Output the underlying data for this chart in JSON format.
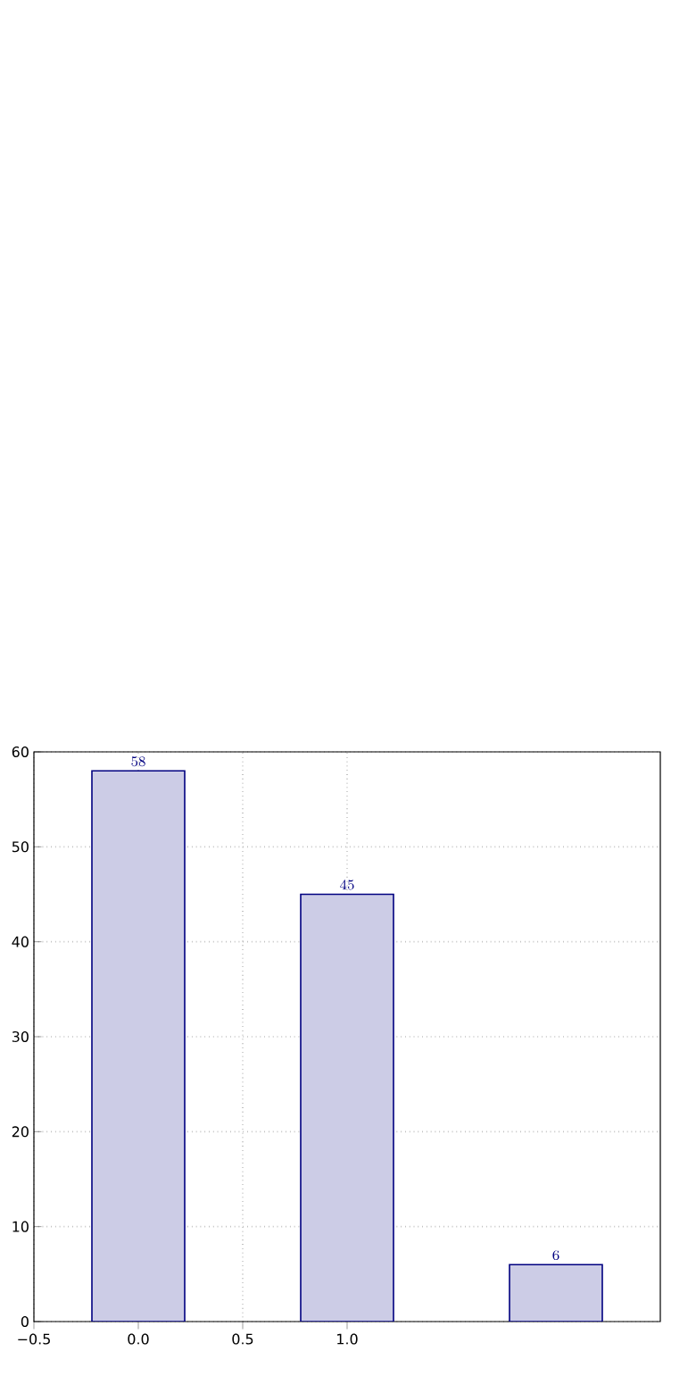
{
  "chart_data": {
    "type": "bar",
    "x": [
      0,
      1,
      2
    ],
    "values": [
      58,
      45,
      6
    ],
    "color": "#000080",
    "xlim": [
      -0.5,
      2.5
    ],
    "xticks": [
      {
        "value": -0.5,
        "label": "−0.5"
      },
      {
        "value": 0,
        "label": "0.0"
      },
      {
        "value": 0.5,
        "label": "0.5"
      },
      {
        "value": 1,
        "label": "1.0"
      }
    ],
    "ylim": [
      0,
      60
    ],
    "yticks": [
      0,
      10,
      20,
      30,
      40,
      50,
      60
    ],
    "grid": true,
    "data_labels": true
  }
}
